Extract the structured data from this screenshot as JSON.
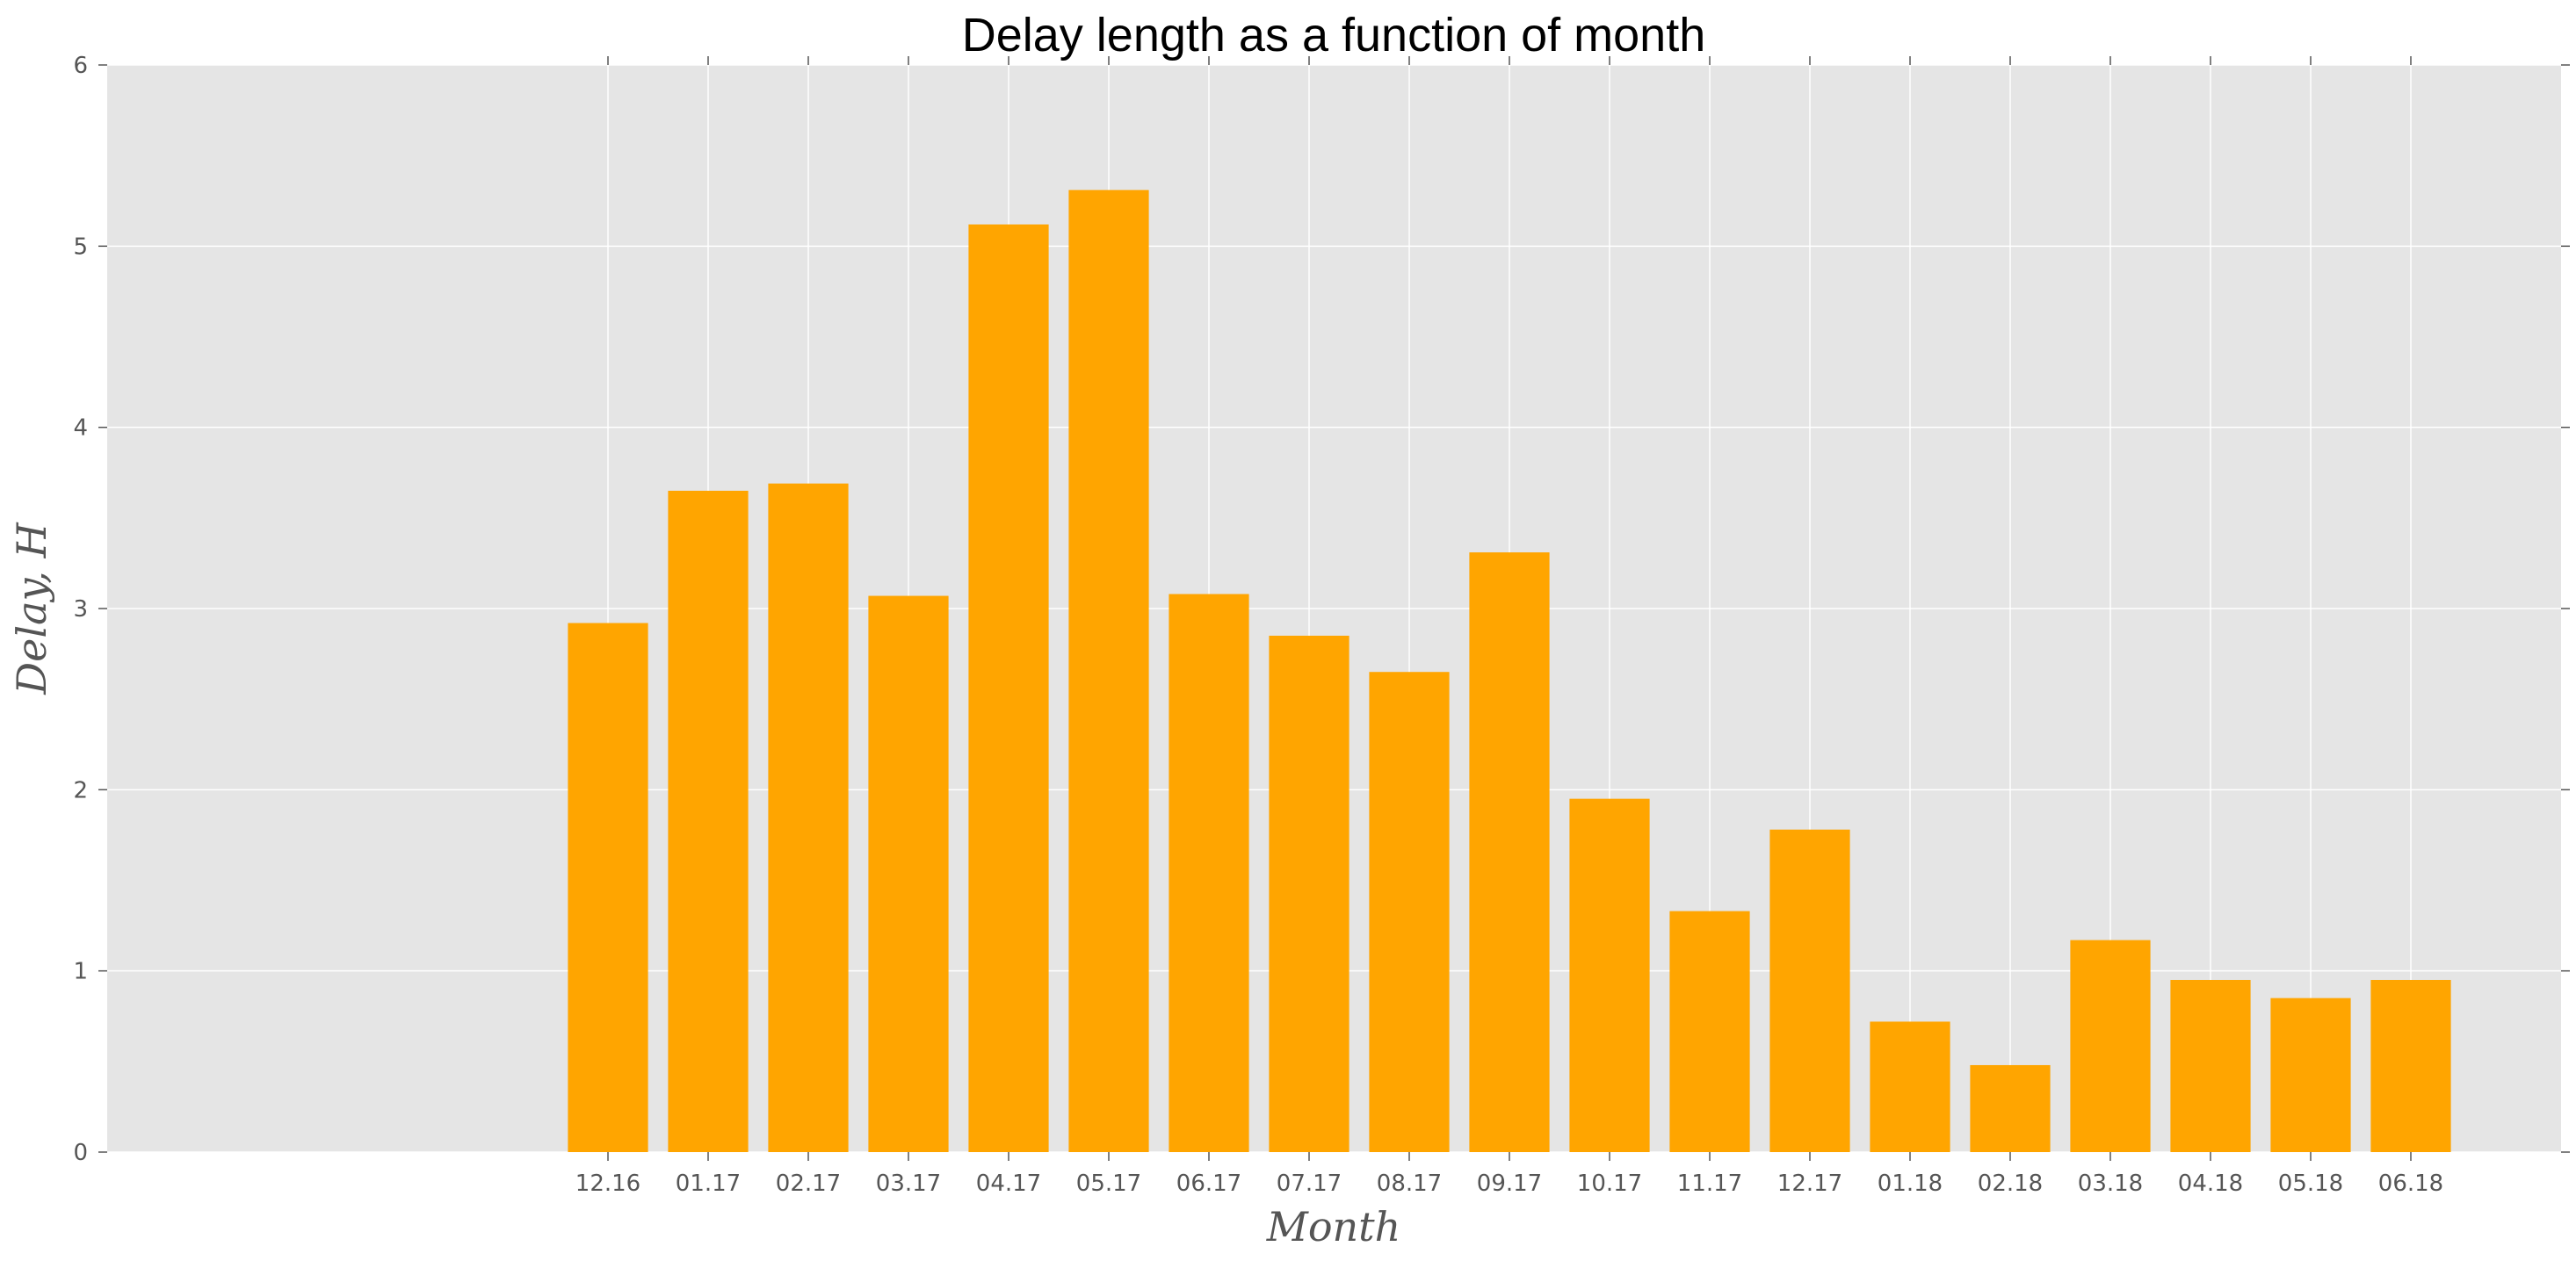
{
  "chart_data": {
    "type": "bar",
    "title": "Delay length as a function of month",
    "xlabel": "Month",
    "ylabel": "Delay, H",
    "categories": [
      "12.16",
      "01.17",
      "02.17",
      "03.17",
      "04.17",
      "05.17",
      "06.17",
      "07.17",
      "08.17",
      "09.17",
      "10.17",
      "11.17",
      "12.17",
      "01.18",
      "02.18",
      "03.18",
      "04.18",
      "05.18",
      "06.18"
    ],
    "values": [
      2.92,
      3.65,
      3.69,
      3.07,
      5.12,
      5.31,
      3.08,
      2.85,
      2.65,
      3.31,
      1.95,
      1.33,
      1.78,
      0.72,
      0.48,
      1.17,
      0.95,
      0.85,
      0.95
    ],
    "ylim": [
      0,
      6
    ],
    "yticks": [
      "0",
      "1",
      "2",
      "3",
      "4",
      "5",
      "6"
    ],
    "grid": true,
    "colors": {
      "bar": "#ffa500",
      "plot_background": "#e5e5e5",
      "grid": "#ffffff",
      "tick": "#555555"
    }
  }
}
